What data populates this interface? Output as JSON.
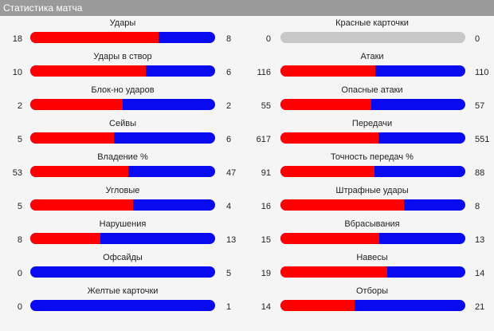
{
  "title": "Статистика матча",
  "colors": {
    "home": "#ff0000",
    "away": "#0a0af0",
    "empty": "#c8c8c8",
    "header_bg": "#9a9a9a"
  },
  "left": [
    {
      "label": "Удары",
      "home": "18",
      "away": "8"
    },
    {
      "label": "Удары в створ",
      "home": "10",
      "away": "6"
    },
    {
      "label": "Блок-но ударов",
      "home": "2",
      "away": "2"
    },
    {
      "label": "Сейвы",
      "home": "5",
      "away": "6"
    },
    {
      "label": "Владение %",
      "home": "53",
      "away": "47"
    },
    {
      "label": "Угловые",
      "home": "5",
      "away": "4"
    },
    {
      "label": "Нарушения",
      "home": "8",
      "away": "13"
    },
    {
      "label": "Офсайды",
      "home": "0",
      "away": "5"
    },
    {
      "label": "Желтые карточки",
      "home": "0",
      "away": "1"
    }
  ],
  "right": [
    {
      "label": "Красные карточки",
      "home": "0",
      "away": "0"
    },
    {
      "label": "Атаки",
      "home": "116",
      "away": "110"
    },
    {
      "label": "Опасные атаки",
      "home": "55",
      "away": "57"
    },
    {
      "label": "Передачи",
      "home": "617",
      "away": "551"
    },
    {
      "label": "Точность передач %",
      "home": "91",
      "away": "88"
    },
    {
      "label": "Штрафные удары",
      "home": "16",
      "away": "8"
    },
    {
      "label": "Вбрасывания",
      "home": "15",
      "away": "13"
    },
    {
      "label": "Навесы",
      "home": "19",
      "away": "14"
    },
    {
      "label": "Отборы",
      "home": "14",
      "away": "21"
    }
  ]
}
